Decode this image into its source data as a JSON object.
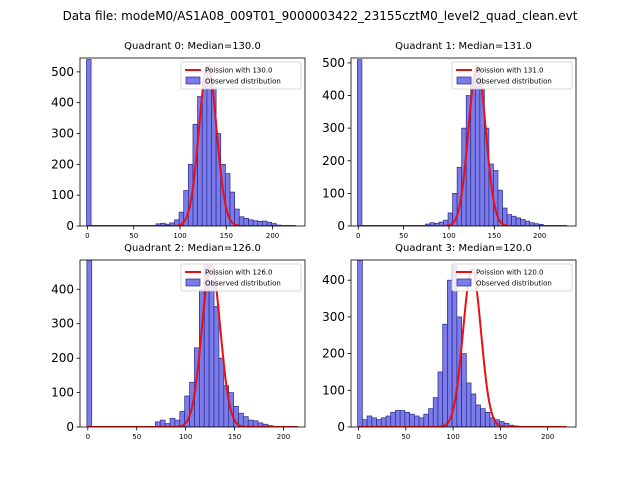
{
  "figure": {
    "suptitle": "Data file: modeM0/AS1A08_009T01_9000003422_23155cztM0_level2_quad_clean.evt"
  },
  "colors": {
    "bar_fill": "#7b7bea",
    "bar_edge": "#2a2a8a",
    "line": "#e81010"
  },
  "chart_data": [
    {
      "type": "bar",
      "title": "Quadrant 0: Median=130.0",
      "xlim": [
        -8,
        235
      ],
      "ylim": [
        0,
        545
      ],
      "xticks": [
        0,
        50,
        100,
        150,
        200
      ],
      "yticks": [
        0,
        100,
        200,
        300,
        400,
        500
      ],
      "legend": {
        "position": "top-right",
        "line_label": "Poission with 130.0",
        "bar_label": "Observed distribution"
      },
      "bins": {
        "start": -1,
        "width": 5,
        "counts": [
          540,
          0,
          0,
          0,
          0,
          0,
          0,
          0,
          0,
          0,
          0,
          0,
          0,
          0,
          0,
          7,
          9,
          6,
          10,
          20,
          45,
          115,
          200,
          330,
          420,
          470,
          510,
          450,
          300,
          200,
          170,
          110,
          55,
          30,
          25,
          20,
          17,
          15,
          16,
          12,
          8,
          3,
          0,
          0,
          0,
          0,
          0
        ]
      },
      "fit": {
        "mu": 130,
        "sigma": 9.5,
        "peak": 520,
        "xmin": 0,
        "xmax": 225
      }
    },
    {
      "type": "bar",
      "title": "Quadrant 1: Median=131.0",
      "xlim": [
        -8,
        240
      ],
      "ylim": [
        0,
        515
      ],
      "xticks": [
        0,
        50,
        100,
        150,
        200
      ],
      "yticks": [
        0,
        100,
        200,
        300,
        400,
        500
      ],
      "legend": {
        "position": "top-right",
        "line_label": "Poission with 131.0",
        "bar_label": "Observed distribution"
      },
      "bins": {
        "start": -1,
        "width": 5,
        "counts": [
          510,
          0,
          0,
          0,
          0,
          0,
          0,
          0,
          0,
          0,
          0,
          0,
          0,
          0,
          0,
          6,
          10,
          8,
          12,
          18,
          40,
          100,
          180,
          300,
          400,
          450,
          480,
          420,
          300,
          190,
          170,
          110,
          55,
          35,
          30,
          25,
          20,
          15,
          10,
          7,
          5,
          2,
          0,
          0,
          0,
          0,
          0
        ]
      },
      "fit": {
        "mu": 131,
        "sigma": 9.5,
        "peak": 490,
        "xmin": 0,
        "xmax": 230
      }
    },
    {
      "type": "bar",
      "title": "Quadrant 2: Median=126.0",
      "xlim": [
        -8,
        222
      ],
      "ylim": [
        0,
        485
      ],
      "xticks": [
        0,
        50,
        100,
        150,
        200
      ],
      "yticks": [
        0,
        100,
        200,
        300,
        400
      ],
      "legend": {
        "position": "top-right",
        "line_label": "Poission with 126.0",
        "bar_label": "Observed distribution"
      },
      "bins": {
        "start": -1,
        "width": 5,
        "counts": [
          485,
          0,
          0,
          0,
          0,
          0,
          0,
          0,
          0,
          0,
          0,
          0,
          0,
          0,
          15,
          20,
          10,
          25,
          20,
          45,
          90,
          130,
          230,
          400,
          470,
          420,
          350,
          200,
          120,
          100,
          60,
          40,
          30,
          20,
          18,
          12,
          8,
          4,
          2,
          0,
          0,
          0,
          0
        ]
      },
      "fit": {
        "mu": 126,
        "sigma": 9.5,
        "peak": 470,
        "xmin": 0,
        "xmax": 215
      }
    },
    {
      "type": "bar",
      "title": "Quadrant 3: Median=120.0",
      "xlim": [
        -8,
        230
      ],
      "ylim": [
        0,
        455
      ],
      "xticks": [
        0,
        50,
        100,
        150,
        200
      ],
      "yticks": [
        0,
        100,
        200,
        300,
        400
      ],
      "legend": {
        "position": "top-right",
        "line_label": "Poission with 120.0",
        "bar_label": "Observed distribution"
      },
      "bins": {
        "start": -1,
        "width": 5,
        "counts": [
          455,
          20,
          30,
          25,
          20,
          25,
          30,
          40,
          45,
          45,
          40,
          35,
          30,
          25,
          35,
          50,
          80,
          150,
          280,
          400,
          440,
          300,
          200,
          120,
          90,
          60,
          50,
          40,
          25,
          20,
          15,
          10,
          5,
          3,
          2,
          0,
          0,
          0,
          0,
          0,
          0,
          0,
          0,
          0,
          0,
          0
        ]
      },
      "fit": {
        "mu": 120,
        "sigma": 9.5,
        "peak": 430,
        "xmin": 0,
        "xmax": 220
      }
    }
  ]
}
